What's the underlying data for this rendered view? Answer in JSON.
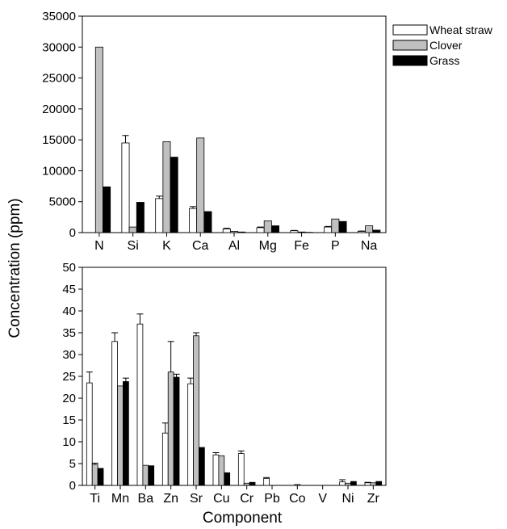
{
  "colors": {
    "wheat_straw": "#ffffff",
    "clover": "#c0c0c0",
    "grass": "#000000",
    "frame": "#000000"
  },
  "chart_data": [
    {
      "type": "bar",
      "categories": [
        "N",
        "Si",
        "K",
        "Ca",
        "Al",
        "Mg",
        "Fe",
        "P",
        "Na"
      ],
      "series": [
        {
          "name": "Wheat straw",
          "values": [
            0,
            14500,
            5500,
            3900,
            600,
            800,
            300,
            900,
            200
          ],
          "errors": [
            0,
            1200,
            400,
            300,
            100,
            100,
            50,
            100,
            50
          ]
        },
        {
          "name": "Clover",
          "values": [
            30000,
            900,
            14700,
            15300,
            200,
            1900,
            100,
            2200,
            1100
          ],
          "errors": [
            0,
            0,
            0,
            0,
            0,
            0,
            0,
            0,
            0
          ]
        },
        {
          "name": "Grass",
          "values": [
            7400,
            4900,
            12200,
            3400,
            100,
            1100,
            50,
            1800,
            400
          ],
          "errors": [
            0,
            0,
            0,
            0,
            0,
            0,
            0,
            0,
            0
          ]
        }
      ],
      "ylim": [
        0,
        35000
      ],
      "yticks": [
        "0",
        "5000",
        "10000",
        "15000",
        "20000",
        "25000",
        "30000",
        "35000"
      ],
      "legend_position": "top-right"
    },
    {
      "type": "bar",
      "categories": [
        "Ti",
        "Mn",
        "Ba",
        "Zn",
        "Sr",
        "Cu",
        "Cr",
        "Pb",
        "Co",
        "V",
        "Ni",
        "Zr"
      ],
      "series": [
        {
          "name": "Wheat straw",
          "values": [
            23.5,
            33,
            37,
            12,
            23.3,
            7,
            7.3,
            1.6,
            0,
            0,
            0.8,
            0.6
          ],
          "errors": [
            2.5,
            2,
            2.3,
            2.3,
            1.3,
            0.5,
            0.6,
            0.2,
            0,
            0,
            0.5,
            0.1
          ]
        },
        {
          "name": "Clover",
          "values": [
            4.8,
            22.8,
            4.6,
            26,
            34.3,
            6.8,
            0.5,
            0,
            0.2,
            0,
            0.5,
            0.6
          ],
          "errors": [
            0.3,
            0,
            0,
            7,
            0.7,
            0,
            0,
            0,
            0,
            0,
            0,
            0
          ]
        },
        {
          "name": "Grass",
          "values": [
            3.9,
            23.8,
            4.5,
            24.8,
            8.7,
            2.9,
            0.7,
            0,
            0,
            0,
            0.9,
            0.9
          ],
          "errors": [
            0,
            0.8,
            0,
            0.7,
            0,
            0,
            0,
            0,
            0,
            0,
            0,
            0
          ]
        }
      ],
      "ylim": [
        0,
        50
      ],
      "yticks": [
        "0",
        "5",
        "10",
        "15",
        "20",
        "25",
        "30",
        "35",
        "40",
        "45",
        "50"
      ]
    }
  ],
  "legend": {
    "items": [
      "Wheat straw",
      "Clover",
      "Grass"
    ]
  },
  "axes": {
    "ylabel": "Concentration (ppm)",
    "xlabel": "Component"
  }
}
